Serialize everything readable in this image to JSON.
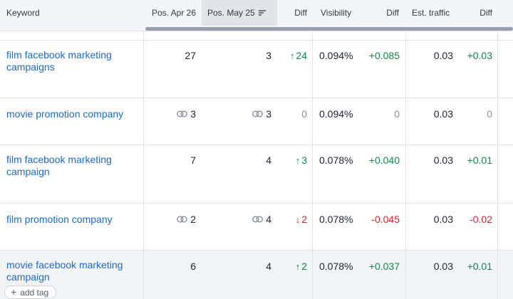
{
  "header": {
    "keyword": "Keyword",
    "pos_prev": "Pos. Apr 26",
    "pos_curr": "Pos. May 25",
    "diff1": "Diff",
    "visibility": "Visibility",
    "diff2": "Diff",
    "traffic": "Est. traffic",
    "diff3": "Diff"
  },
  "colors": {
    "link": "#1b6ac9",
    "positive": "#0c8a4a",
    "negative": "#d1242f",
    "neutral": "#8a8f98"
  },
  "rows": [
    {
      "keyword": "film facebook marketing campaigns",
      "pos_prev": "27",
      "pos_curr": "3",
      "pos_diff": "24",
      "pos_diff_dir": "up",
      "visibility": "0.094%",
      "vis_diff": "+0.085",
      "traffic": "0.03",
      "traffic_diff": "+0.03"
    },
    {
      "keyword": "movie promotion company",
      "pos_prev": "3",
      "pos_prev_icon": "link-icon",
      "pos_curr": "3",
      "pos_curr_icon": "link-icon",
      "pos_diff": "0",
      "pos_diff_dir": "none",
      "visibility": "0.094%",
      "vis_diff": "0",
      "traffic": "0.03",
      "traffic_diff": "0"
    },
    {
      "keyword": "film facebook marketing campaign",
      "pos_prev": "7",
      "pos_curr": "4",
      "pos_diff": "3",
      "pos_diff_dir": "up",
      "visibility": "0.078%",
      "vis_diff": "+0.040",
      "traffic": "0.03",
      "traffic_diff": "+0.01"
    },
    {
      "keyword": "film promotion company",
      "pos_prev": "2",
      "pos_prev_icon": "link-icon",
      "pos_curr": "4",
      "pos_curr_icon": "link-icon",
      "pos_diff": "2",
      "pos_diff_dir": "down",
      "visibility": "0.078%",
      "vis_diff": "-0.045",
      "traffic": "0.03",
      "traffic_diff": "-0.02"
    },
    {
      "keyword": "movie facebook marketing campaign",
      "pos_prev": "6",
      "pos_curr": "4",
      "pos_diff": "2",
      "pos_diff_dir": "up",
      "visibility": "0.078%",
      "vis_diff": "+0.037",
      "traffic": "0.03",
      "traffic_diff": "+0.01"
    }
  ],
  "add_tag": "add tag"
}
